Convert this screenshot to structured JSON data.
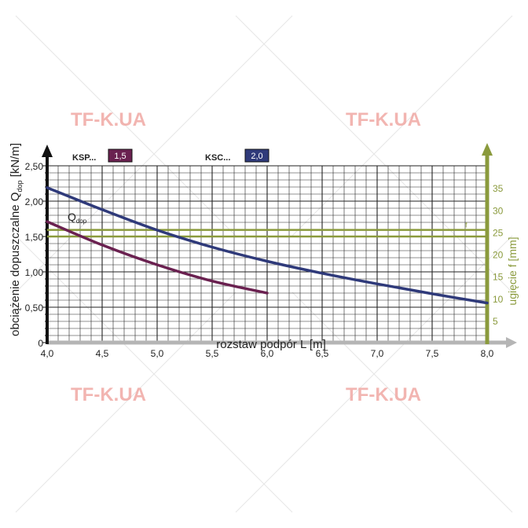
{
  "watermark": "TF-K.UA",
  "colors": {
    "ksp": "#6a2150",
    "ksc": "#2f3a7a",
    "deflection": "#8a9a3c",
    "grid": "#222222",
    "axis_gray": "#b5b5b5"
  },
  "chart_data": {
    "type": "line",
    "xlabel": "rozstaw podpór L [m]",
    "ylabel": "obciążenie dopuszczalne Q",
    "ylabel_sub": "dop",
    "ylabel_unit": " [kN/m]",
    "y2label": "ugięcie f [mm]",
    "xlim": [
      4.0,
      8.0
    ],
    "ylim": [
      0,
      2.5
    ],
    "y2lim": [
      0,
      40
    ],
    "x_ticks": [
      "4,0",
      "4,5",
      "5,0",
      "5,5",
      "6,0",
      "6,5",
      "7,0",
      "7,5",
      "8,0"
    ],
    "y_ticks": [
      "0",
      "0,50",
      "1,00",
      "1,50",
      "2,00",
      "2,50"
    ],
    "y2_ticks": [
      "5",
      "10",
      "15",
      "20",
      "25",
      "30",
      "35"
    ],
    "curve_label": "Q",
    "curve_label_sub": "dop",
    "deflection_marker": "f",
    "grid": true,
    "legend": [
      {
        "name": "KSP...",
        "value": "1,5"
      },
      {
        "name": "KSC...",
        "value": "2,0"
      }
    ],
    "series": [
      {
        "name": "KSP...",
        "x": [
          4.0,
          4.5,
          5.0,
          5.5,
          6.0
        ],
        "y": [
          1.71,
          1.38,
          1.1,
          0.87,
          0.7
        ]
      },
      {
        "name": "KSC...",
        "x": [
          4.0,
          4.5,
          5.0,
          5.5,
          6.0,
          6.5,
          7.0,
          7.5,
          8.0
        ],
        "y": [
          2.19,
          1.88,
          1.59,
          1.35,
          1.15,
          0.98,
          0.83,
          0.69,
          0.56
        ]
      }
    ],
    "deflection_limit": {
      "y2": [
        24,
        25.5
      ]
    }
  }
}
